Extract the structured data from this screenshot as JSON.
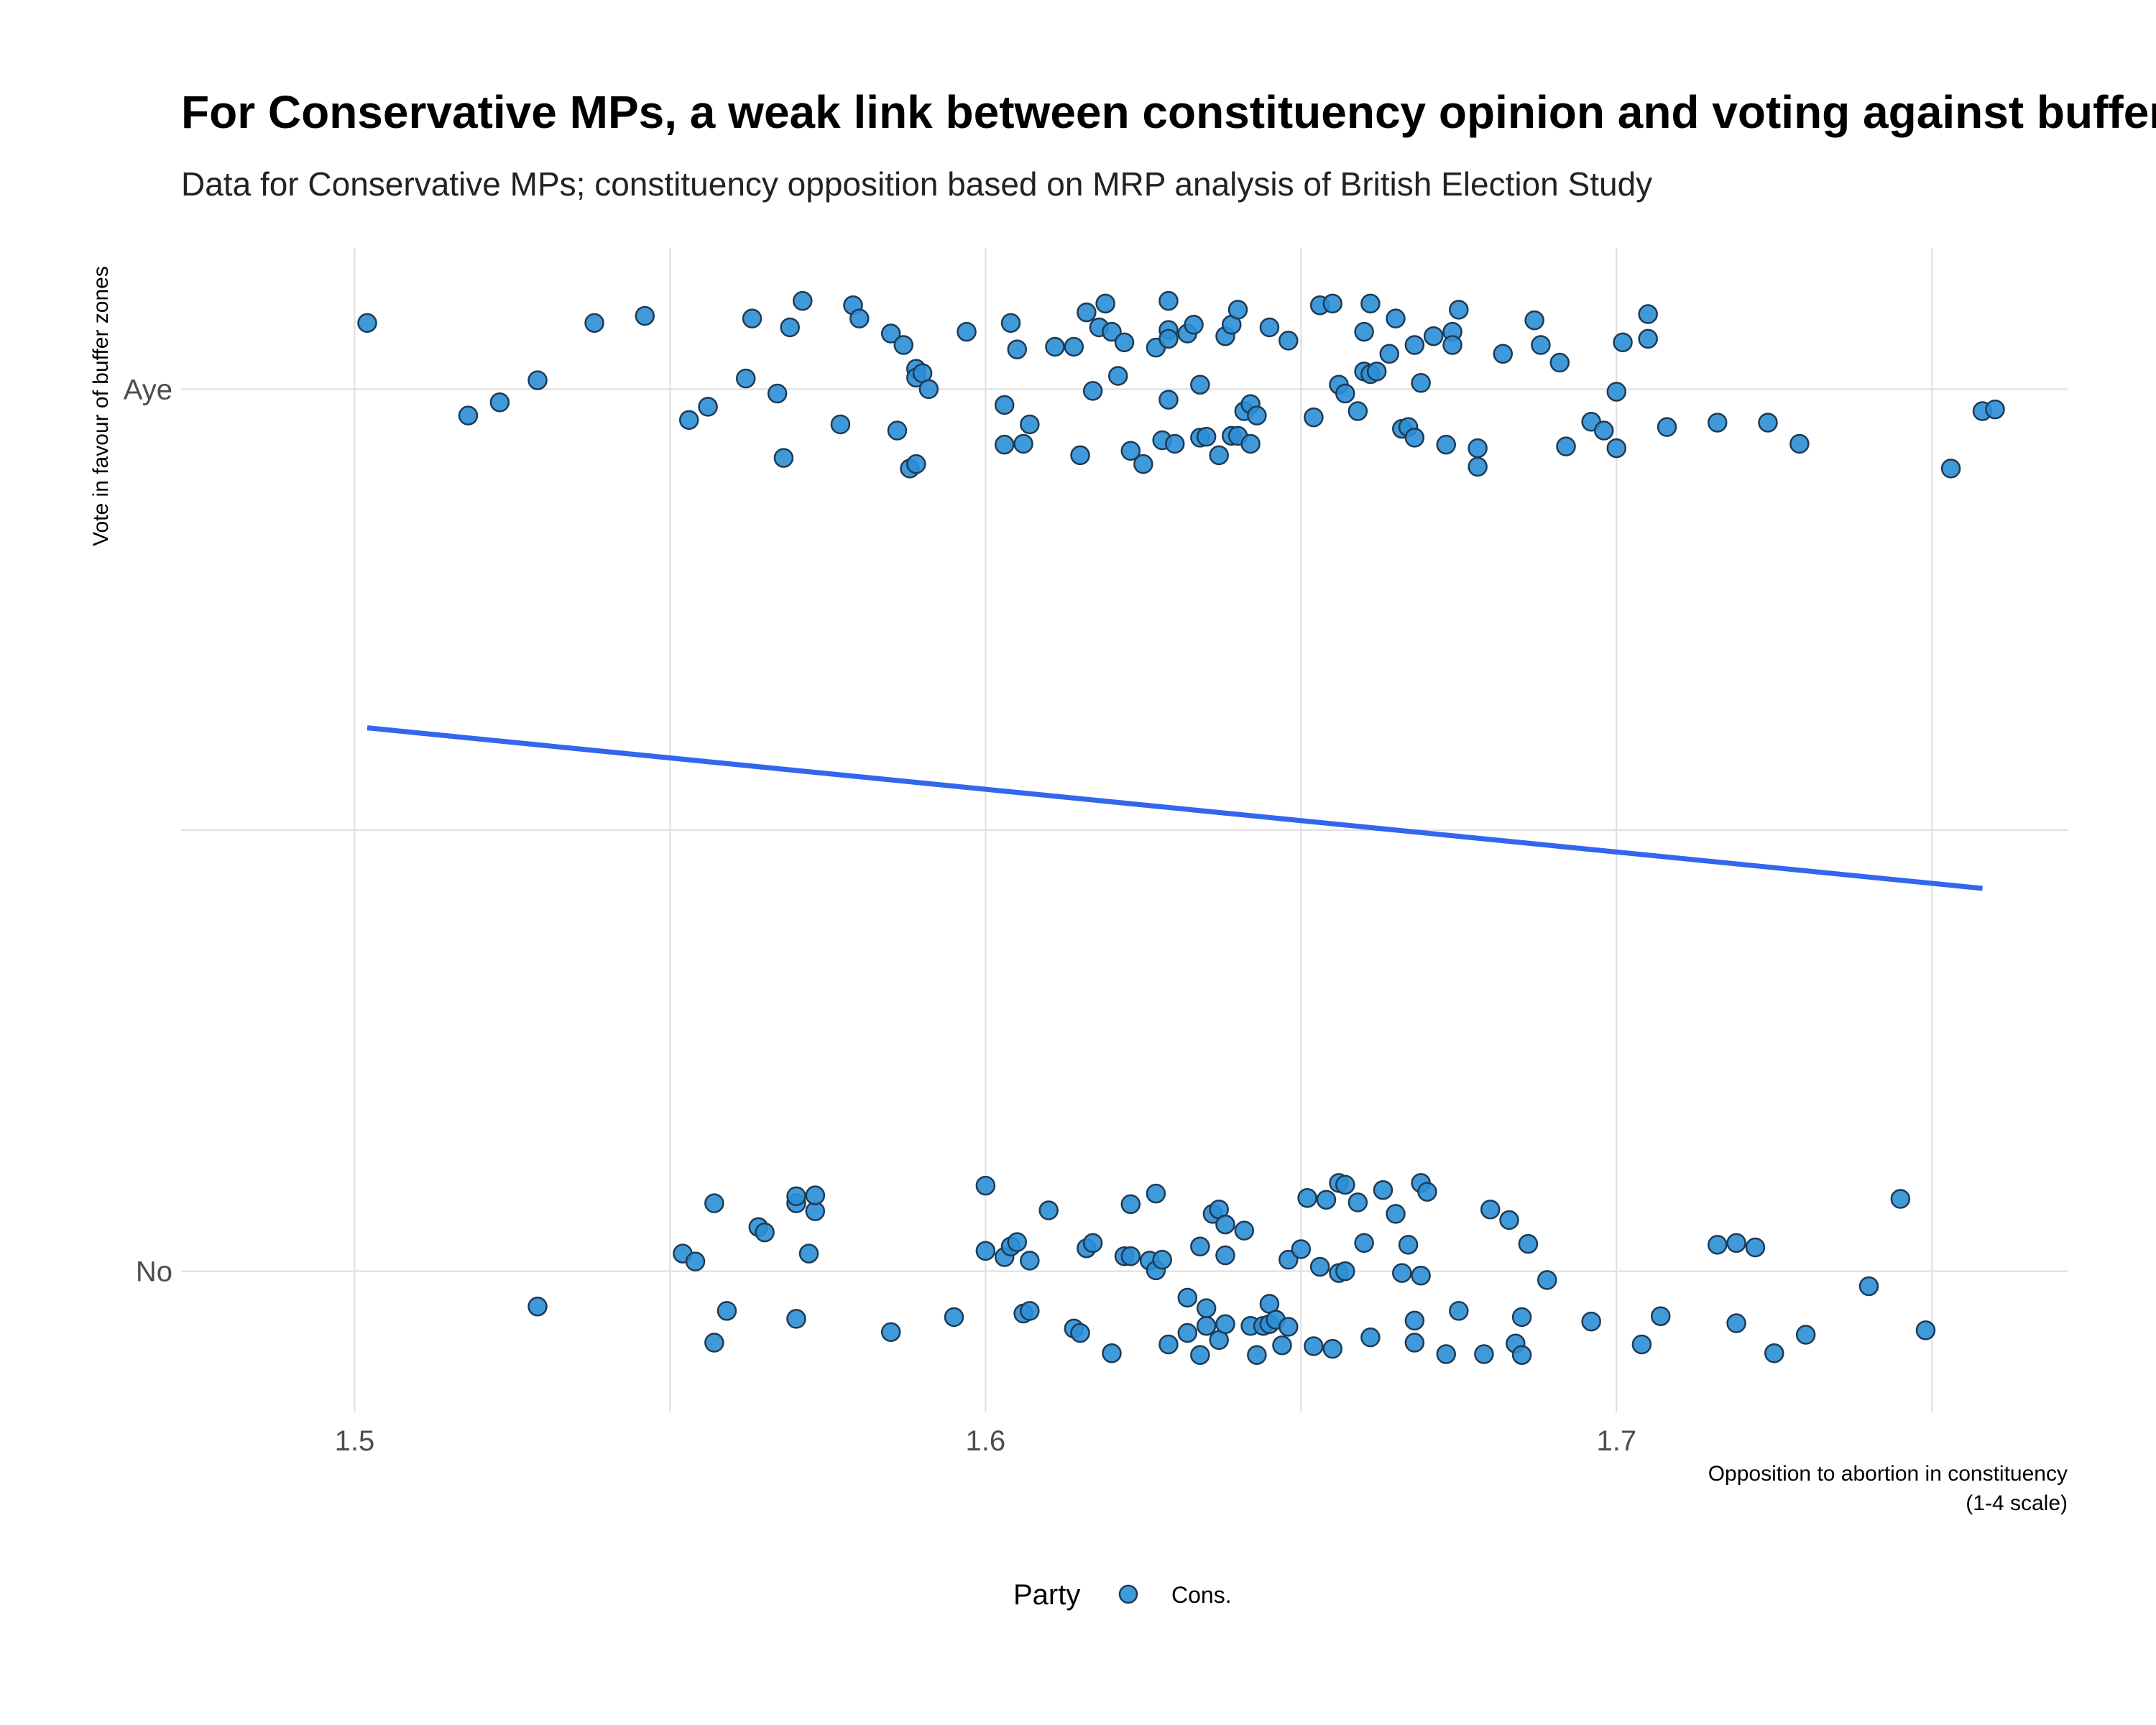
{
  "chart_data": {
    "type": "scatter",
    "title": "For Conservative MPs, a weak link between constituency opinion and voting against buffer zones",
    "subtitle": "Data for Conservative MPs; constituency opposition based on MRP analysis of British Election Study",
    "ylabel": "Vote in favour of buffer zones",
    "xlabel_line1": "Opposition to abortion in constituency",
    "xlabel_line2": "(1-4 scale)",
    "y_categories": [
      "No",
      "Aye"
    ],
    "x_ticks": [
      "1.5",
      "1.6",
      "1.7"
    ],
    "xlim": [
      1.4725,
      1.7715
    ],
    "ylim": [
      -0.16,
      1.16
    ],
    "grid": true,
    "jitter_note_free": true,
    "legend": {
      "title": "Party",
      "items": [
        "Cons."
      ],
      "position": "bottom"
    },
    "colors": {
      "point": "#2b8fd6",
      "point_stroke": "#1e3a55",
      "trend": "#3366ee"
    },
    "trend_line": {
      "x": [
        1.502,
        1.758
      ],
      "y": [
        0.616,
        0.434
      ]
    },
    "aye_points": [
      [
        1.502,
        1.075
      ],
      [
        1.518,
        0.97
      ],
      [
        1.523,
        0.985
      ],
      [
        1.529,
        1.01
      ],
      [
        1.538,
        1.075
      ],
      [
        1.546,
        1.083
      ],
      [
        1.553,
        0.965
      ],
      [
        1.556,
        0.98
      ],
      [
        1.562,
        1.012
      ],
      [
        1.563,
        1.08
      ],
      [
        1.567,
        0.995
      ],
      [
        1.568,
        0.922
      ],
      [
        1.569,
        1.07
      ],
      [
        1.571,
        1.1
      ],
      [
        1.577,
        0.96
      ],
      [
        1.579,
        1.095
      ],
      [
        1.58,
        1.08
      ],
      [
        1.585,
        1.063
      ],
      [
        1.586,
        0.953
      ],
      [
        1.587,
        1.05
      ],
      [
        1.588,
        0.91
      ],
      [
        1.589,
        0.915
      ],
      [
        1.589,
        1.023
      ],
      [
        1.589,
        1.013
      ],
      [
        1.59,
        1.018
      ],
      [
        1.591,
        1.0
      ],
      [
        1.597,
        1.065
      ],
      [
        1.603,
        0.982
      ],
      [
        1.603,
        0.937
      ],
      [
        1.604,
        1.075
      ],
      [
        1.605,
        1.045
      ],
      [
        1.606,
        0.938
      ],
      [
        1.607,
        0.96
      ],
      [
        1.611,
        1.048
      ],
      [
        1.614,
        1.048
      ],
      [
        1.615,
        0.925
      ],
      [
        1.616,
        1.087
      ],
      [
        1.617,
        0.998
      ],
      [
        1.618,
        1.07
      ],
      [
        1.619,
        1.097
      ],
      [
        1.62,
        1.065
      ],
      [
        1.621,
        1.015
      ],
      [
        1.622,
        1.053
      ],
      [
        1.623,
        0.93
      ],
      [
        1.625,
        0.915
      ],
      [
        1.627,
        1.047
      ],
      [
        1.628,
        0.942
      ],
      [
        1.629,
        1.1
      ],
      [
        1.629,
        1.067
      ],
      [
        1.629,
        1.057
      ],
      [
        1.629,
        0.988
      ],
      [
        1.63,
        0.938
      ],
      [
        1.632,
        1.063
      ],
      [
        1.633,
        1.073
      ],
      [
        1.634,
        0.945
      ],
      [
        1.634,
        1.005
      ],
      [
        1.635,
        0.946
      ],
      [
        1.637,
        0.925
      ],
      [
        1.638,
        1.06
      ],
      [
        1.639,
        1.073
      ],
      [
        1.639,
        0.947
      ],
      [
        1.64,
        1.09
      ],
      [
        1.64,
        0.947
      ],
      [
        1.641,
        0.975
      ],
      [
        1.642,
        0.938
      ],
      [
        1.642,
        0.983
      ],
      [
        1.643,
        0.97
      ],
      [
        1.645,
        1.07
      ],
      [
        1.648,
        1.055
      ],
      [
        1.652,
        0.968
      ],
      [
        1.653,
        1.095
      ],
      [
        1.655,
        1.097
      ],
      [
        1.656,
        1.005
      ],
      [
        1.657,
        0.995
      ],
      [
        1.659,
        0.975
      ],
      [
        1.66,
        1.02
      ],
      [
        1.66,
        1.065
      ],
      [
        1.661,
        1.097
      ],
      [
        1.661,
        1.017
      ],
      [
        1.662,
        1.02
      ],
      [
        1.664,
        1.04
      ],
      [
        1.665,
        1.08
      ],
      [
        1.666,
        0.955
      ],
      [
        1.667,
        0.957
      ],
      [
        1.668,
        0.945
      ],
      [
        1.668,
        1.05
      ],
      [
        1.669,
        1.007
      ],
      [
        1.671,
        1.06
      ],
      [
        1.673,
        0.937
      ],
      [
        1.674,
        1.065
      ],
      [
        1.674,
        1.05
      ],
      [
        1.675,
        1.09
      ],
      [
        1.678,
        0.933
      ],
      [
        1.678,
        0.912
      ],
      [
        1.682,
        1.04
      ],
      [
        1.687,
        1.078
      ],
      [
        1.688,
        1.05
      ],
      [
        1.691,
        1.03
      ],
      [
        1.692,
        0.935
      ],
      [
        1.696,
        0.963
      ],
      [
        1.698,
        0.953
      ],
      [
        1.7,
        0.997
      ],
      [
        1.7,
        0.933
      ],
      [
        1.701,
        1.053
      ],
      [
        1.705,
        1.057
      ],
      [
        1.705,
        1.085
      ],
      [
        1.708,
        0.957
      ],
      [
        1.716,
        0.962
      ],
      [
        1.724,
        0.962
      ],
      [
        1.729,
        0.938
      ],
      [
        1.753,
        0.91
      ],
      [
        1.758,
        0.975
      ],
      [
        1.76,
        0.977
      ]
    ],
    "no_points": [
      [
        1.529,
        -0.04
      ],
      [
        1.552,
        0.02
      ],
      [
        1.554,
        0.011
      ],
      [
        1.557,
        0.077
      ],
      [
        1.557,
        -0.081
      ],
      [
        1.559,
        -0.045
      ],
      [
        1.564,
        0.05
      ],
      [
        1.565,
        0.044
      ],
      [
        1.57,
        0.077
      ],
      [
        1.57,
        0.085
      ],
      [
        1.57,
        -0.054
      ],
      [
        1.572,
        0.02
      ],
      [
        1.573,
        0.068
      ],
      [
        1.573,
        0.086
      ],
      [
        1.585,
        -0.069
      ],
      [
        1.595,
        -0.052
      ],
      [
        1.6,
        0.097
      ],
      [
        1.6,
        0.023
      ],
      [
        1.603,
        0.016
      ],
      [
        1.604,
        0.028
      ],
      [
        1.605,
        0.033
      ],
      [
        1.606,
        -0.048
      ],
      [
        1.607,
        -0.045
      ],
      [
        1.607,
        0.012
      ],
      [
        1.61,
        0.069
      ],
      [
        1.614,
        -0.065
      ],
      [
        1.615,
        -0.07
      ],
      [
        1.616,
        0.026
      ],
      [
        1.617,
        0.032
      ],
      [
        1.62,
        -0.093
      ],
      [
        1.622,
        0.017
      ],
      [
        1.623,
        0.076
      ],
      [
        1.623,
        0.017
      ],
      [
        1.626,
        0.012
      ],
      [
        1.627,
        0.088
      ],
      [
        1.627,
        0.001
      ],
      [
        1.628,
        0.013
      ],
      [
        1.629,
        -0.083
      ],
      [
        1.632,
        -0.03
      ],
      [
        1.632,
        -0.07
      ],
      [
        1.634,
        0.028
      ],
      [
        1.634,
        -0.095
      ],
      [
        1.635,
        -0.062
      ],
      [
        1.635,
        -0.042
      ],
      [
        1.636,
        0.065
      ],
      [
        1.637,
        0.07
      ],
      [
        1.637,
        -0.078
      ],
      [
        1.638,
        0.053
      ],
      [
        1.638,
        0.018
      ],
      [
        1.638,
        -0.06
      ],
      [
        1.641,
        0.046
      ],
      [
        1.642,
        -0.062
      ],
      [
        1.643,
        -0.095
      ],
      [
        1.644,
        -0.062
      ],
      [
        1.645,
        -0.06
      ],
      [
        1.645,
        -0.037
      ],
      [
        1.646,
        -0.055
      ],
      [
        1.647,
        -0.084
      ],
      [
        1.648,
        0.013
      ],
      [
        1.648,
        -0.063
      ],
      [
        1.65,
        0.025
      ],
      [
        1.651,
        0.083
      ],
      [
        1.652,
        -0.085
      ],
      [
        1.653,
        0.005
      ],
      [
        1.654,
        0.081
      ],
      [
        1.655,
        -0.088
      ],
      [
        1.656,
        0.1
      ],
      [
        1.656,
        -0.002
      ],
      [
        1.657,
        0.098
      ],
      [
        1.657,
        0.0
      ],
      [
        1.659,
        0.078
      ],
      [
        1.66,
        0.032
      ],
      [
        1.661,
        -0.075
      ],
      [
        1.663,
        0.092
      ],
      [
        1.665,
        0.065
      ],
      [
        1.666,
        -0.002
      ],
      [
        1.667,
        0.03
      ],
      [
        1.668,
        -0.056
      ],
      [
        1.668,
        -0.081
      ],
      [
        1.669,
        0.1
      ],
      [
        1.669,
        -0.005
      ],
      [
        1.67,
        0.09
      ],
      [
        1.673,
        -0.094
      ],
      [
        1.675,
        -0.045
      ],
      [
        1.679,
        -0.094
      ],
      [
        1.68,
        0.07
      ],
      [
        1.683,
        0.058
      ],
      [
        1.684,
        -0.082
      ],
      [
        1.685,
        -0.052
      ],
      [
        1.685,
        -0.095
      ],
      [
        1.686,
        0.031
      ],
      [
        1.689,
        -0.01
      ],
      [
        1.696,
        -0.057
      ],
      [
        1.704,
        -0.083
      ],
      [
        1.707,
        -0.051
      ],
      [
        1.716,
        0.03
      ],
      [
        1.719,
        0.032
      ],
      [
        1.719,
        -0.059
      ],
      [
        1.722,
        0.027
      ],
      [
        1.725,
        -0.093
      ],
      [
        1.73,
        -0.072
      ],
      [
        1.74,
        -0.017
      ],
      [
        1.745,
        0.082
      ],
      [
        1.749,
        -0.067
      ]
    ]
  }
}
